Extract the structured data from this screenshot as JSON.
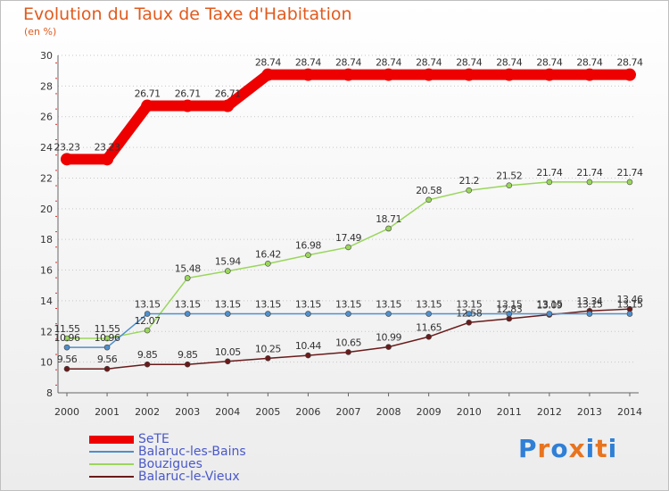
{
  "header": {
    "title": "Evolution du Taux de Taxe d'Habitation",
    "unit": "(en %)"
  },
  "logo": {
    "text": "Proxiti",
    "colors": [
      "#2f7fd6",
      "#e8741f",
      "#2f7fd6",
      "#e8741f",
      "#2f7fd6",
      "#e8741f",
      "#2f7fd6"
    ]
  },
  "chart_data": {
    "type": "line",
    "title": "Evolution du Taux de Taxe d'Habitation",
    "ylabel": "(en %)",
    "xlabel": "",
    "x": [
      "2000",
      "2001",
      "2002",
      "2003",
      "2004",
      "2005",
      "2006",
      "2007",
      "2008",
      "2009",
      "2010",
      "2011",
      "2012",
      "2013",
      "2014"
    ],
    "ylim": [
      8,
      30
    ],
    "yticks": [
      8,
      10,
      12,
      14,
      16,
      18,
      20,
      22,
      24,
      26,
      28,
      30
    ],
    "grid": "horizontal dotted",
    "legend_position": "bottom-left",
    "series": [
      {
        "name": "SeTE",
        "color": "#ee0000",
        "values": [
          23.23,
          23.23,
          26.71,
          26.71,
          26.71,
          28.74,
          28.74,
          28.74,
          28.74,
          28.74,
          28.74,
          28.74,
          28.74,
          28.74,
          28.74
        ],
        "labels": [
          "23.23",
          "23.23",
          "26.71",
          "26.71",
          "26.71",
          "28.74",
          "28.74",
          "28.74",
          "28.74",
          "28.74",
          "28.74",
          "28.74",
          "28.74",
          "28.74",
          "28.74"
        ]
      },
      {
        "name": "Balaruc-les-Bains",
        "color": "#4f8fcb",
        "values": [
          10.96,
          10.96,
          13.15,
          13.15,
          13.15,
          13.15,
          13.15,
          13.15,
          13.15,
          13.15,
          13.15,
          13.15,
          13.15,
          13.15,
          13.15
        ],
        "labels": [
          "10.96",
          "10.96",
          "13.15",
          "13.15",
          "13.15",
          "13.15",
          "13.15",
          "13.15",
          "13.15",
          "13.15",
          "13.15",
          "13.15",
          "13.15",
          "13.15",
          "13.15"
        ]
      },
      {
        "name": "Bouzigues",
        "color": "#9ad65c",
        "values": [
          11.55,
          11.55,
          12.07,
          15.48,
          15.94,
          16.42,
          16.98,
          17.49,
          18.71,
          20.58,
          21.2,
          21.52,
          21.74,
          21.74,
          21.74
        ],
        "labels": [
          "11.55",
          "11.55",
          "12.07",
          "15.48",
          "15.94",
          "16.42",
          "16.98",
          "17.49",
          "18.71",
          "20.58",
          "21.2",
          "21.52",
          "21.74",
          "21.74",
          "21.74"
        ]
      },
      {
        "name": "Balaruc-le-Vieux",
        "color": "#6a1a1a",
        "values": [
          9.56,
          9.56,
          9.85,
          9.85,
          10.05,
          10.25,
          10.44,
          10.65,
          10.99,
          11.65,
          12.58,
          12.83,
          13.09,
          13.34,
          13.46
        ],
        "labels": [
          "9.56",
          "9.56",
          "9.85",
          "9.85",
          "10.05",
          "10.25",
          "10.44",
          "10.65",
          "10.99",
          "11.65",
          "12.58",
          "12.83",
          "13.09",
          "13.34",
          "13.46"
        ]
      }
    ]
  }
}
